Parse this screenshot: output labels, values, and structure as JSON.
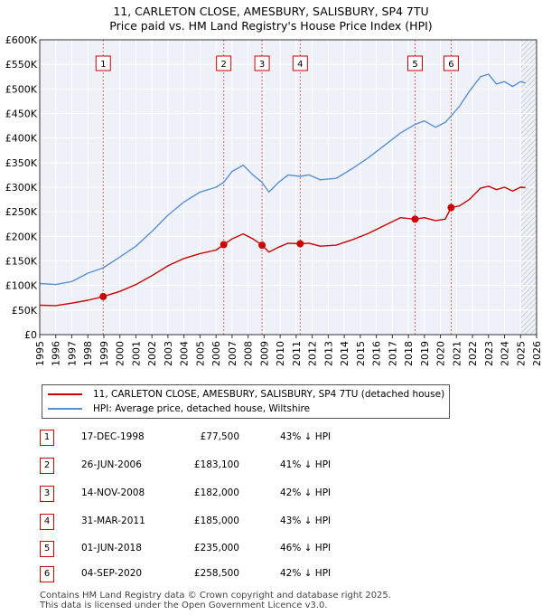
{
  "title_line1": "11, CARLETON CLOSE, AMESBURY, SALISBURY, SP4 7TU",
  "title_line2": "Price paid vs. HM Land Registry's House Price Index (HPI)",
  "chart_data": {
    "type": "line",
    "title": "11, CARLETON CLOSE, AMESBURY, SALISBURY, SP4 7TU — Price paid vs. HM Land Registry's House Price Index (HPI)",
    "xlim": [
      1995,
      2026
    ],
    "ylim": [
      0,
      600000
    ],
    "x_ticks": [
      "1995",
      "1996",
      "1997",
      "1998",
      "1999",
      "2000",
      "2001",
      "2002",
      "2003",
      "2004",
      "2005",
      "2006",
      "2007",
      "2008",
      "2009",
      "2010",
      "2011",
      "2012",
      "2013",
      "2014",
      "2015",
      "2016",
      "2017",
      "2018",
      "2019",
      "2020",
      "2021",
      "2022",
      "2023",
      "2024",
      "2025",
      "2026"
    ],
    "y_ticks": [
      {
        "value": 0,
        "label": "£0"
      },
      {
        "value": 50000,
        "label": "£50K"
      },
      {
        "value": 100000,
        "label": "£100K"
      },
      {
        "value": 150000,
        "label": "£150K"
      },
      {
        "value": 200000,
        "label": "£200K"
      },
      {
        "value": 250000,
        "label": "£250K"
      },
      {
        "value": 300000,
        "label": "£300K"
      },
      {
        "value": 350000,
        "label": "£350K"
      },
      {
        "value": 400000,
        "label": "£400K"
      },
      {
        "value": 450000,
        "label": "£450K"
      },
      {
        "value": 500000,
        "label": "£500K"
      },
      {
        "value": 550000,
        "label": "£550K"
      },
      {
        "value": 600000,
        "label": "£600K"
      }
    ],
    "series": [
      {
        "name": "11, CARLETON CLOSE, AMESBURY, SALISBURY, SP4 7TU (detached house)",
        "color": "#cc0000",
        "points": [
          [
            1995.0,
            60000
          ],
          [
            1996.0,
            59000
          ],
          [
            1997.0,
            64000
          ],
          [
            1998.0,
            70000
          ],
          [
            1998.96,
            77500
          ],
          [
            2000.0,
            88000
          ],
          [
            2001.0,
            102000
          ],
          [
            2002.0,
            120000
          ],
          [
            2003.0,
            140000
          ],
          [
            2004.0,
            155000
          ],
          [
            2005.0,
            165000
          ],
          [
            2006.0,
            172000
          ],
          [
            2006.48,
            183100
          ],
          [
            2007.0,
            195000
          ],
          [
            2007.7,
            205000
          ],
          [
            2008.3,
            195000
          ],
          [
            2008.87,
            182000
          ],
          [
            2009.3,
            168000
          ],
          [
            2009.9,
            178000
          ],
          [
            2010.5,
            186000
          ],
          [
            2011.25,
            185000
          ],
          [
            2011.8,
            186000
          ],
          [
            2012.5,
            180000
          ],
          [
            2013.5,
            182000
          ],
          [
            2014.5,
            193000
          ],
          [
            2015.5,
            206000
          ],
          [
            2016.5,
            222000
          ],
          [
            2017.5,
            238000
          ],
          [
            2018.42,
            235000
          ],
          [
            2019.0,
            238000
          ],
          [
            2019.7,
            232000
          ],
          [
            2020.3,
            235000
          ],
          [
            2020.67,
            258500
          ],
          [
            2021.2,
            262000
          ],
          [
            2021.8,
            275000
          ],
          [
            2022.5,
            298000
          ],
          [
            2023.0,
            302000
          ],
          [
            2023.5,
            295000
          ],
          [
            2024.0,
            300000
          ],
          [
            2024.5,
            292000
          ],
          [
            2025.0,
            300000
          ],
          [
            2025.3,
            299000
          ]
        ]
      },
      {
        "name": "HPI: Average price, detached house, Wiltshire",
        "color": "#5b8fd4",
        "points": [
          [
            1995.0,
            104000
          ],
          [
            1996.0,
            102000
          ],
          [
            1997.0,
            108000
          ],
          [
            1998.0,
            125000
          ],
          [
            1998.96,
            136000
          ],
          [
            2000.0,
            158000
          ],
          [
            2001.0,
            180000
          ],
          [
            2002.0,
            210000
          ],
          [
            2003.0,
            243000
          ],
          [
            2004.0,
            270000
          ],
          [
            2005.0,
            290000
          ],
          [
            2006.0,
            300000
          ],
          [
            2006.48,
            310000
          ],
          [
            2007.0,
            332000
          ],
          [
            2007.7,
            345000
          ],
          [
            2008.3,
            325000
          ],
          [
            2008.87,
            310000
          ],
          [
            2009.3,
            290000
          ],
          [
            2009.9,
            310000
          ],
          [
            2010.5,
            325000
          ],
          [
            2011.25,
            322000
          ],
          [
            2011.8,
            325000
          ],
          [
            2012.5,
            315000
          ],
          [
            2013.5,
            318000
          ],
          [
            2014.5,
            338000
          ],
          [
            2015.5,
            360000
          ],
          [
            2016.5,
            385000
          ],
          [
            2017.5,
            410000
          ],
          [
            2018.42,
            428000
          ],
          [
            2019.0,
            435000
          ],
          [
            2019.7,
            422000
          ],
          [
            2020.3,
            432000
          ],
          [
            2020.67,
            445000
          ],
          [
            2021.2,
            465000
          ],
          [
            2021.8,
            495000
          ],
          [
            2022.5,
            525000
          ],
          [
            2023.0,
            530000
          ],
          [
            2023.5,
            510000
          ],
          [
            2024.0,
            515000
          ],
          [
            2024.5,
            505000
          ],
          [
            2025.0,
            515000
          ],
          [
            2025.3,
            512000
          ]
        ]
      }
    ],
    "sales": [
      {
        "label": "1",
        "x": 1998.96,
        "value": 77500
      },
      {
        "label": "2",
        "x": 2006.48,
        "value": 183100
      },
      {
        "label": "3",
        "x": 2008.87,
        "value": 182000
      },
      {
        "label": "4",
        "x": 2011.25,
        "value": 185000
      },
      {
        "label": "5",
        "x": 2018.42,
        "value": 235000
      },
      {
        "label": "6",
        "x": 2020.67,
        "value": 258500
      }
    ],
    "hatch_from": 2025.0,
    "grid": true
  },
  "legend": [
    {
      "label": "11, CARLETON CLOSE, AMESBURY, SALISBURY, SP4 7TU (detached house)",
      "color": "#cc0000"
    },
    {
      "label": "HPI: Average price, detached house, Wiltshire",
      "color": "#5b8fd4"
    }
  ],
  "sales_table": [
    {
      "num": "1",
      "date": "17-DEC-1998",
      "price": "£77,500",
      "hpi": "43% ↓ HPI"
    },
    {
      "num": "2",
      "date": "26-JUN-2006",
      "price": "£183,100",
      "hpi": "41% ↓ HPI"
    },
    {
      "num": "3",
      "date": "14-NOV-2008",
      "price": "£182,000",
      "hpi": "42% ↓ HPI"
    },
    {
      "num": "4",
      "date": "31-MAR-2011",
      "price": "£185,000",
      "hpi": "43% ↓ HPI"
    },
    {
      "num": "5",
      "date": "01-JUN-2018",
      "price": "£235,000",
      "hpi": "46% ↓ HPI"
    },
    {
      "num": "6",
      "date": "04-SEP-2020",
      "price": "£258,500",
      "hpi": "42% ↓ HPI"
    }
  ],
  "footer_line1": "Contains HM Land Registry data © Crown copyright and database right 2025.",
  "footer_line2": "This data is licensed under the Open Government Licence v3.0."
}
